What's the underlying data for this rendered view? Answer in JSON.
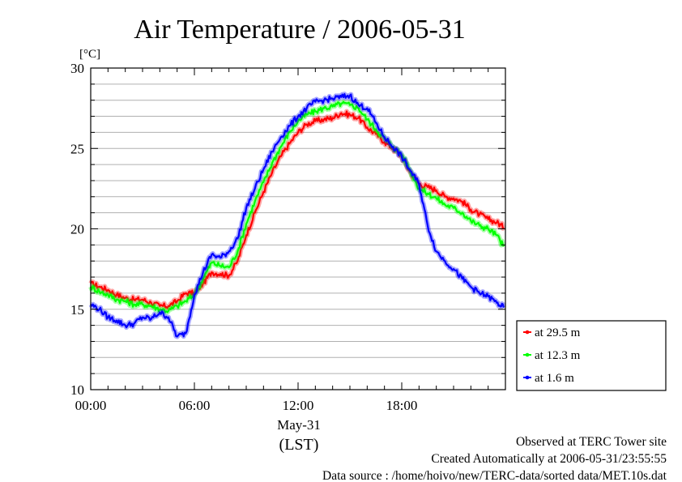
{
  "chart_data": {
    "type": "line",
    "title": "Air Temperature / 2006-05-31",
    "ylabel": "[°C]",
    "xlabel": "(LST)",
    "date_label": "May-31",
    "xlim": [
      0,
      24
    ],
    "ylim": [
      10,
      30
    ],
    "x_ticks": [
      {
        "value": 0,
        "label": "00:00"
      },
      {
        "value": 6,
        "label": "06:00"
      },
      {
        "value": 12,
        "label": "12:00"
      },
      {
        "value": 18,
        "label": "18:00"
      }
    ],
    "y_ticks": [
      {
        "value": 10,
        "label": "10"
      },
      {
        "value": 15,
        "label": "15"
      },
      {
        "value": 20,
        "label": "20"
      },
      {
        "value": 25,
        "label": "25"
      },
      {
        "value": 30,
        "label": "30"
      }
    ],
    "grid": true,
    "legend": "outside-right",
    "series": [
      {
        "name": "at 29.5 m",
        "color": "#ff0000",
        "x": [
          0,
          0.5,
          1,
          1.5,
          2,
          2.5,
          3,
          3.5,
          4,
          4.5,
          5,
          5.5,
          6,
          6.5,
          7,
          7.5,
          8,
          8.5,
          9,
          9.5,
          10,
          10.5,
          11,
          11.5,
          12,
          12.5,
          13,
          13.5,
          14,
          14.5,
          15,
          15.5,
          16,
          16.5,
          17,
          17.5,
          18,
          18.5,
          19,
          19.5,
          20,
          20.5,
          21,
          21.5,
          22,
          22.5,
          23,
          23.5,
          23.9
        ],
        "values": [
          16.6,
          16.4,
          16.2,
          15.9,
          15.7,
          15.6,
          15.6,
          15.4,
          15.2,
          15.2,
          15.5,
          16.0,
          16.0,
          16.6,
          17.3,
          17.2,
          17.1,
          18.0,
          19.6,
          21.0,
          22.3,
          23.5,
          24.5,
          25.3,
          26.0,
          26.5,
          26.7,
          26.8,
          26.9,
          27.2,
          27.1,
          26.9,
          26.3,
          25.9,
          25.4,
          25.0,
          24.5,
          23.5,
          22.8,
          22.6,
          22.4,
          22.0,
          21.9,
          21.7,
          21.2,
          20.9,
          20.6,
          20.4,
          20.1
        ]
      },
      {
        "name": "at 12.3 m",
        "color": "#00ff00",
        "x": [
          0,
          0.5,
          1,
          1.5,
          2,
          2.5,
          3,
          3.5,
          4,
          4.5,
          5,
          5.5,
          6,
          6.5,
          7,
          7.5,
          8,
          8.5,
          9,
          9.5,
          10,
          10.5,
          11,
          11.5,
          12,
          12.5,
          13,
          13.5,
          14,
          14.5,
          15,
          15.5,
          16,
          16.5,
          17,
          17.5,
          18,
          18.5,
          19,
          19.5,
          20,
          20.5,
          21,
          21.5,
          22,
          22.5,
          23,
          23.5,
          23.9
        ],
        "values": [
          16.4,
          16.1,
          15.9,
          15.6,
          15.5,
          15.3,
          15.3,
          15.2,
          15.0,
          14.9,
          15.2,
          15.5,
          15.9,
          16.9,
          17.9,
          17.7,
          17.6,
          18.6,
          20.3,
          21.7,
          22.9,
          24.1,
          25.1,
          26.0,
          26.7,
          27.1,
          27.3,
          27.5,
          27.6,
          27.8,
          27.7,
          27.5,
          26.8,
          26.2,
          25.6,
          25.1,
          24.6,
          23.6,
          22.5,
          22.2,
          21.9,
          21.5,
          21.3,
          21.0,
          20.5,
          20.2,
          20.0,
          19.6,
          18.9
        ]
      },
      {
        "name": "at 1.6 m",
        "color": "#0000ff",
        "x": [
          0,
          0.5,
          1,
          1.5,
          2,
          2.5,
          3,
          3.5,
          4,
          4.5,
          5,
          5.5,
          6,
          6.5,
          7,
          7.5,
          8,
          8.5,
          9,
          9.5,
          10,
          10.5,
          11,
          11.5,
          12,
          12.5,
          13,
          13.5,
          14,
          14.5,
          15,
          15.5,
          16,
          16.5,
          17,
          17.5,
          18,
          18.5,
          19,
          19.5,
          20,
          20.5,
          21,
          21.5,
          22,
          22.5,
          23,
          23.5,
          23.9
        ],
        "values": [
          15.3,
          15.0,
          14.5,
          14.3,
          14.0,
          14.1,
          14.5,
          14.4,
          14.8,
          14.5,
          13.3,
          13.5,
          15.9,
          17.3,
          18.4,
          18.2,
          18.6,
          19.4,
          21.3,
          22.5,
          23.7,
          24.8,
          25.7,
          26.4,
          27.0,
          27.5,
          27.9,
          28.0,
          28.1,
          28.2,
          28.3,
          27.7,
          27.5,
          26.6,
          25.7,
          25.1,
          24.5,
          23.6,
          22.8,
          20.2,
          18.6,
          18.0,
          17.5,
          16.9,
          16.4,
          16.0,
          15.8,
          15.4,
          15.1
        ]
      }
    ]
  },
  "footer": {
    "line1": "Observed at TERC Tower site",
    "line2": "Created Automatically at 2006-05-31/23:55:55",
    "line3": "Data source : /home/hoivo/new/TERC-data/sorted  data/MET.10s.dat"
  }
}
